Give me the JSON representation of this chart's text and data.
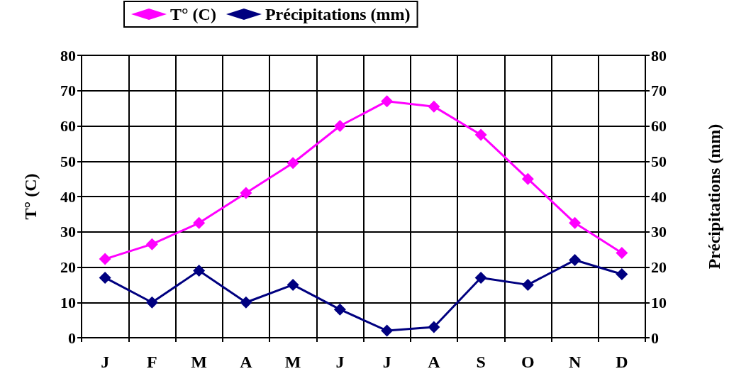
{
  "chart_data": {
    "type": "line",
    "ylabel": "T° (C)",
    "y2label": "Précipitations (mm)",
    "categories": [
      "J",
      "F",
      "M",
      "A",
      "M",
      "J",
      "J",
      "A",
      "S",
      "O",
      "N",
      "D"
    ],
    "series": [
      {
        "name": "T° (C)",
        "color": "#ff00ff",
        "values": [
          22.3,
          26.5,
          32.5,
          41,
          49.5,
          60,
          67,
          65.5,
          57.5,
          45,
          32.5,
          24
        ]
      },
      {
        "name": "Précipitations (mm)",
        "color": "#000080",
        "axis": "y2",
        "values": [
          17,
          10,
          19,
          10,
          15,
          8,
          2,
          3,
          17,
          15,
          22,
          18
        ]
      }
    ],
    "ylim": [
      0,
      80
    ],
    "yticks": [
      0,
      10,
      20,
      30,
      40,
      50,
      60,
      70,
      80
    ],
    "y2lim": [
      0,
      80
    ],
    "y2ticks": [
      0,
      10,
      20,
      30,
      40,
      50,
      60,
      70,
      80
    ],
    "grid": true,
    "legend": "top",
    "marker": "diamond",
    "line_style": "solid"
  }
}
